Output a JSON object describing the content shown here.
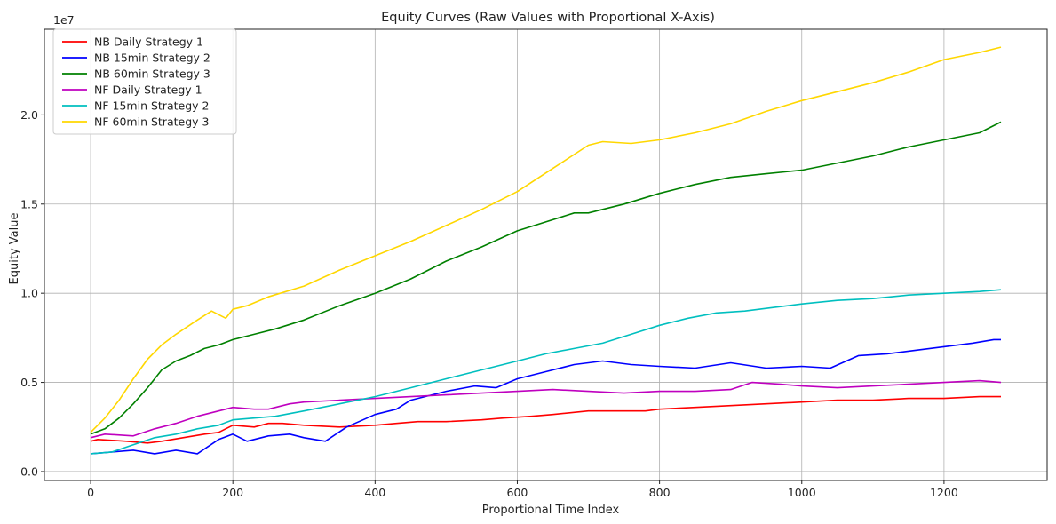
{
  "chart_data": {
    "type": "line",
    "title": "Equity Curves (Raw Values with Proportional X-Axis)",
    "xlabel": "Proportional Time Index",
    "ylabel": "Equity Value",
    "y_offset_label": "1e7",
    "xlim": [
      -65,
      1345
    ],
    "ylim": [
      -0.05,
      2.48
    ],
    "x_ticks": [
      0,
      200,
      400,
      600,
      800,
      1000,
      1200
    ],
    "x_tick_labels": [
      "0",
      "200",
      "400",
      "600",
      "800",
      "1000",
      "1200"
    ],
    "y_ticks": [
      0.0,
      0.5,
      1.0,
      1.5,
      2.0
    ],
    "y_tick_labels": [
      "0.0",
      "0.5",
      "1.0",
      "1.5",
      "2.0"
    ],
    "grid": true,
    "legend_position": "upper-left",
    "series": [
      {
        "name": "NB Daily Strategy 1",
        "color": "#ff0000",
        "x": [
          0,
          10,
          50,
          80,
          100,
          130,
          160,
          180,
          200,
          230,
          250,
          270,
          300,
          350,
          400,
          430,
          460,
          500,
          550,
          580,
          620,
          650,
          700,
          750,
          780,
          800,
          850,
          900,
          950,
          1000,
          1050,
          1100,
          1150,
          1200,
          1250,
          1280
        ],
        "values": [
          0.17,
          0.18,
          0.17,
          0.16,
          0.17,
          0.19,
          0.21,
          0.22,
          0.26,
          0.25,
          0.27,
          0.27,
          0.26,
          0.25,
          0.26,
          0.27,
          0.28,
          0.28,
          0.29,
          0.3,
          0.31,
          0.32,
          0.34,
          0.34,
          0.34,
          0.35,
          0.36,
          0.37,
          0.38,
          0.39,
          0.4,
          0.4,
          0.41,
          0.41,
          0.42,
          0.42
        ]
      },
      {
        "name": "NB 15min Strategy 2",
        "color": "#0000ff",
        "x": [
          0,
          30,
          60,
          90,
          120,
          150,
          180,
          200,
          220,
          250,
          280,
          300,
          330,
          360,
          400,
          430,
          450,
          470,
          500,
          540,
          570,
          600,
          640,
          680,
          720,
          760,
          800,
          850,
          900,
          950,
          1000,
          1040,
          1080,
          1120,
          1160,
          1200,
          1240,
          1270,
          1280
        ],
        "values": [
          0.1,
          0.11,
          0.12,
          0.1,
          0.12,
          0.1,
          0.18,
          0.21,
          0.17,
          0.2,
          0.21,
          0.19,
          0.17,
          0.25,
          0.32,
          0.35,
          0.4,
          0.42,
          0.45,
          0.48,
          0.47,
          0.52,
          0.56,
          0.6,
          0.62,
          0.6,
          0.59,
          0.58,
          0.61,
          0.58,
          0.59,
          0.58,
          0.65,
          0.66,
          0.68,
          0.7,
          0.72,
          0.74,
          0.74
        ]
      },
      {
        "name": "NB 60min Strategy 3",
        "color": "#008000",
        "x": [
          0,
          20,
          40,
          60,
          80,
          100,
          120,
          140,
          160,
          180,
          200,
          230,
          260,
          300,
          350,
          400,
          450,
          500,
          550,
          600,
          640,
          680,
          700,
          750,
          800,
          850,
          900,
          950,
          1000,
          1050,
          1100,
          1150,
          1200,
          1250,
          1280
        ],
        "values": [
          0.21,
          0.24,
          0.3,
          0.38,
          0.47,
          0.57,
          0.62,
          0.65,
          0.69,
          0.71,
          0.74,
          0.77,
          0.8,
          0.85,
          0.93,
          1.0,
          1.08,
          1.18,
          1.26,
          1.35,
          1.4,
          1.45,
          1.45,
          1.5,
          1.56,
          1.61,
          1.65,
          1.67,
          1.69,
          1.73,
          1.77,
          1.82,
          1.86,
          1.9,
          1.96
        ]
      },
      {
        "name": "NF Daily Strategy 1",
        "color": "#bf00bf",
        "x": [
          0,
          20,
          60,
          90,
          120,
          150,
          180,
          200,
          230,
          250,
          280,
          300,
          350,
          400,
          450,
          500,
          550,
          600,
          650,
          700,
          750,
          800,
          850,
          900,
          930,
          970,
          1000,
          1050,
          1100,
          1150,
          1200,
          1250,
          1280
        ],
        "values": [
          0.19,
          0.21,
          0.2,
          0.24,
          0.27,
          0.31,
          0.34,
          0.36,
          0.35,
          0.35,
          0.38,
          0.39,
          0.4,
          0.41,
          0.42,
          0.43,
          0.44,
          0.45,
          0.46,
          0.45,
          0.44,
          0.45,
          0.45,
          0.46,
          0.5,
          0.49,
          0.48,
          0.47,
          0.48,
          0.49,
          0.5,
          0.51,
          0.5
        ]
      },
      {
        "name": "NF 15min Strategy 2",
        "color": "#00bfbf",
        "x": [
          0,
          30,
          60,
          90,
          120,
          150,
          180,
          200,
          230,
          260,
          300,
          350,
          400,
          450,
          500,
          550,
          600,
          640,
          680,
          720,
          760,
          800,
          840,
          880,
          920,
          960,
          1000,
          1050,
          1100,
          1150,
          1200,
          1250,
          1280
        ],
        "values": [
          0.1,
          0.11,
          0.15,
          0.19,
          0.21,
          0.24,
          0.26,
          0.29,
          0.3,
          0.31,
          0.34,
          0.38,
          0.42,
          0.47,
          0.52,
          0.57,
          0.62,
          0.66,
          0.69,
          0.72,
          0.77,
          0.82,
          0.86,
          0.89,
          0.9,
          0.92,
          0.94,
          0.96,
          0.97,
          0.99,
          1.0,
          1.01,
          1.02
        ]
      },
      {
        "name": "NF 60min Strategy 3",
        "color": "#ffd700",
        "x": [
          0,
          20,
          40,
          60,
          80,
          100,
          120,
          150,
          170,
          190,
          200,
          220,
          250,
          300,
          350,
          400,
          450,
          500,
          550,
          600,
          650,
          700,
          720,
          760,
          800,
          850,
          900,
          950,
          1000,
          1050,
          1100,
          1150,
          1200,
          1250,
          1280
        ],
        "values": [
          0.22,
          0.3,
          0.4,
          0.52,
          0.63,
          0.71,
          0.77,
          0.85,
          0.9,
          0.86,
          0.91,
          0.93,
          0.98,
          1.04,
          1.13,
          1.21,
          1.29,
          1.38,
          1.47,
          1.57,
          1.7,
          1.83,
          1.85,
          1.84,
          1.86,
          1.9,
          1.95,
          2.02,
          2.08,
          2.13,
          2.18,
          2.24,
          2.31,
          2.35,
          2.38
        ]
      }
    ]
  }
}
